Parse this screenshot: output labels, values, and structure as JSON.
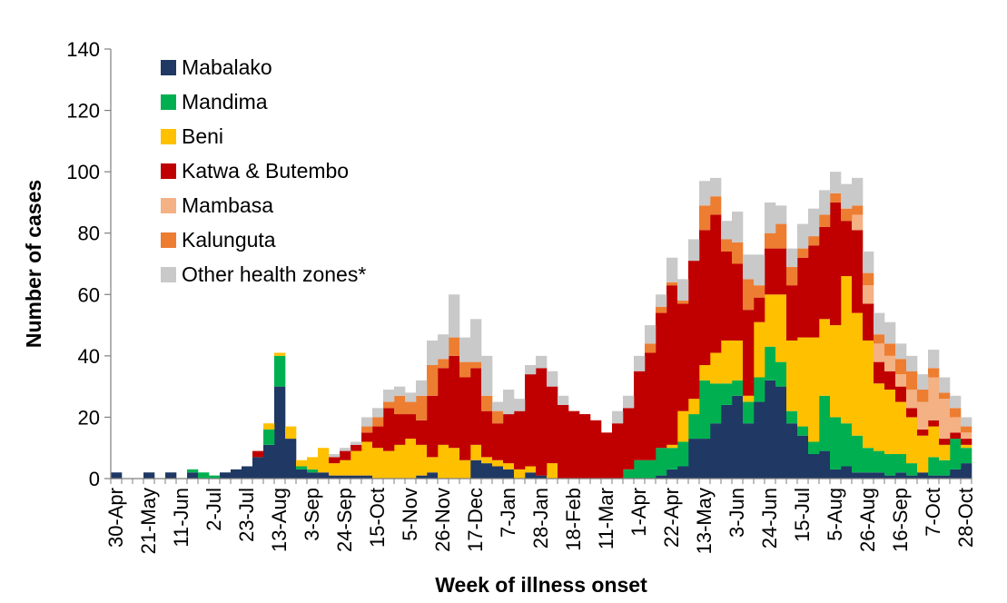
{
  "chart_data": {
    "type": "bar",
    "stacked": true,
    "title": "",
    "xlabel": "Week of illness onset",
    "ylabel": "Number of cases",
    "ylim": [
      0,
      140
    ],
    "yticks": [
      0,
      20,
      40,
      60,
      80,
      100,
      120,
      140
    ],
    "grid": false,
    "legend_position": "top-left",
    "x_tick_labels": [
      "30-Apr",
      "21-May",
      "11-Jun",
      "2-Jul",
      "23-Jul",
      "13-Aug",
      "3-Sep",
      "24-Sep",
      "15-Oct",
      "5-Nov",
      "26-Nov",
      "17-Dec",
      "7-Jan",
      "28-Jan",
      "18-Feb",
      "11-Mar",
      "1-Apr",
      "22-Apr",
      "13-May",
      "3-Jun",
      "24-Jun",
      "15-Jul",
      "5-Aug",
      "26-Aug",
      "16-Sep",
      "7-Oct",
      "28-Oct"
    ],
    "x_tick_every": 3,
    "num_weeks": 79,
    "series": [
      {
        "name": "Mabalako",
        "color": "#1f3864",
        "values": [
          2,
          0,
          0,
          2,
          0,
          2,
          0,
          2,
          0,
          0,
          2,
          3,
          4,
          7,
          11,
          30,
          13,
          3,
          2,
          2,
          1,
          1,
          1,
          1,
          0,
          0,
          0,
          0,
          1,
          2,
          0,
          0,
          0,
          6,
          5,
          4,
          3,
          0,
          2,
          1,
          0,
          0,
          0,
          0,
          0,
          0,
          0,
          0,
          0,
          0,
          1,
          3,
          4,
          13,
          13,
          18,
          24,
          27,
          18,
          25,
          32,
          30,
          18,
          14,
          8,
          9,
          3,
          4,
          2,
          2,
          2,
          1,
          2,
          1,
          2,
          1,
          1,
          3,
          5
        ]
      },
      {
        "name": "Mandima",
        "color": "#00b050",
        "values": [
          0,
          0,
          0,
          0,
          0,
          0,
          0,
          1,
          2,
          1,
          0,
          0,
          0,
          0,
          5,
          10,
          0,
          1,
          1,
          0,
          0,
          0,
          0,
          0,
          0,
          0,
          0,
          0,
          0,
          0,
          0,
          0,
          0,
          0,
          0,
          0,
          0,
          0,
          0,
          0,
          0,
          0,
          0,
          0,
          0,
          0,
          0,
          3,
          6,
          6,
          9,
          7,
          8,
          8,
          19,
          13,
          7,
          5,
          7,
          8,
          11,
          8,
          4,
          3,
          4,
          18,
          17,
          14,
          12,
          8,
          7,
          7,
          6,
          4,
          0,
          6,
          5,
          10,
          5
        ]
      },
      {
        "name": "Beni",
        "color": "#ffc000",
        "values": [
          0,
          0,
          0,
          0,
          0,
          0,
          0,
          0,
          0,
          0,
          0,
          0,
          0,
          0,
          2,
          1,
          4,
          2,
          4,
          8,
          4,
          5,
          8,
          11,
          10,
          9,
          11,
          13,
          10,
          5,
          11,
          10,
          6,
          5,
          2,
          2,
          2,
          3,
          2,
          0,
          5,
          0,
          0,
          0,
          0,
          0,
          0,
          0,
          0,
          0,
          0,
          1,
          10,
          5,
          5,
          10,
          14,
          13,
          2,
          18,
          17,
          22,
          23,
          29,
          34,
          25,
          30,
          48,
          40,
          35,
          22,
          21,
          17,
          15,
          12,
          10,
          5,
          0,
          1
        ]
      },
      {
        "name": "Katwa & Butembo",
        "color": "#c00000",
        "values": [
          0,
          0,
          0,
          0,
          0,
          0,
          0,
          0,
          0,
          0,
          0,
          0,
          0,
          2,
          0,
          0,
          0,
          0,
          0,
          0,
          2,
          3,
          2,
          3,
          7,
          14,
          10,
          8,
          8,
          20,
          25,
          30,
          27,
          25,
          15,
          12,
          16,
          19,
          30,
          35,
          25,
          24,
          22,
          21,
          19,
          15,
          18,
          20,
          29,
          35,
          44,
          52,
          35,
          45,
          44,
          45,
          29,
          25,
          28,
          8,
          15,
          15,
          18,
          26,
          30,
          30,
          40,
          18,
          27,
          12,
          7,
          6,
          5,
          3,
          2,
          2,
          2,
          2,
          2
        ]
      },
      {
        "name": "Mambasa",
        "color": "#f4b183",
        "values": [
          0,
          0,
          0,
          0,
          0,
          0,
          0,
          0,
          0,
          0,
          0,
          0,
          0,
          0,
          0,
          0,
          0,
          0,
          0,
          0,
          0,
          0,
          0,
          0,
          0,
          0,
          0,
          0,
          0,
          0,
          0,
          0,
          0,
          0,
          0,
          0,
          0,
          0,
          0,
          0,
          0,
          0,
          0,
          0,
          0,
          0,
          0,
          0,
          0,
          0,
          0,
          0,
          0,
          0,
          0,
          0,
          0,
          0,
          0,
          0,
          0,
          0,
          0,
          0,
          0,
          0,
          0,
          0,
          5,
          6,
          6,
          5,
          4,
          6,
          9,
          14,
          13,
          5,
          2
        ]
      },
      {
        "name": "Kalunguta",
        "color": "#ed7d31",
        "values": [
          0,
          0,
          0,
          0,
          0,
          0,
          0,
          0,
          0,
          0,
          0,
          0,
          0,
          0,
          0,
          0,
          0,
          0,
          0,
          0,
          0,
          0,
          0,
          2,
          3,
          2,
          6,
          4,
          8,
          10,
          3,
          6,
          5,
          2,
          5,
          4,
          0,
          0,
          0,
          0,
          0,
          0,
          0,
          0,
          0,
          0,
          0,
          0,
          0,
          3,
          2,
          1,
          1,
          0,
          8,
          6,
          4,
          7,
          10,
          4,
          5,
          8,
          6,
          3,
          3,
          4,
          3,
          4,
          3,
          4,
          3,
          4,
          5,
          6,
          4,
          3,
          2,
          3,
          2
        ]
      },
      {
        "name": "Other health zones*",
        "color": "#c9c9c9",
        "values": [
          0,
          0,
          0,
          0,
          0,
          0,
          0,
          0,
          0,
          0,
          0,
          0,
          0,
          0,
          0,
          0,
          0,
          0,
          0,
          0,
          1,
          1,
          1,
          3,
          3,
          4,
          3,
          3,
          5,
          8,
          8,
          14,
          8,
          14,
          13,
          3,
          8,
          4,
          3,
          4,
          5,
          3,
          0,
          0,
          0,
          0,
          4,
          4,
          5,
          6,
          4,
          8,
          7,
          7,
          8,
          6,
          6,
          10,
          8,
          10,
          10,
          6,
          6,
          8,
          9,
          8,
          7,
          8,
          9,
          7,
          7,
          7,
          5,
          5,
          5,
          6,
          5,
          4,
          3
        ]
      }
    ]
  }
}
